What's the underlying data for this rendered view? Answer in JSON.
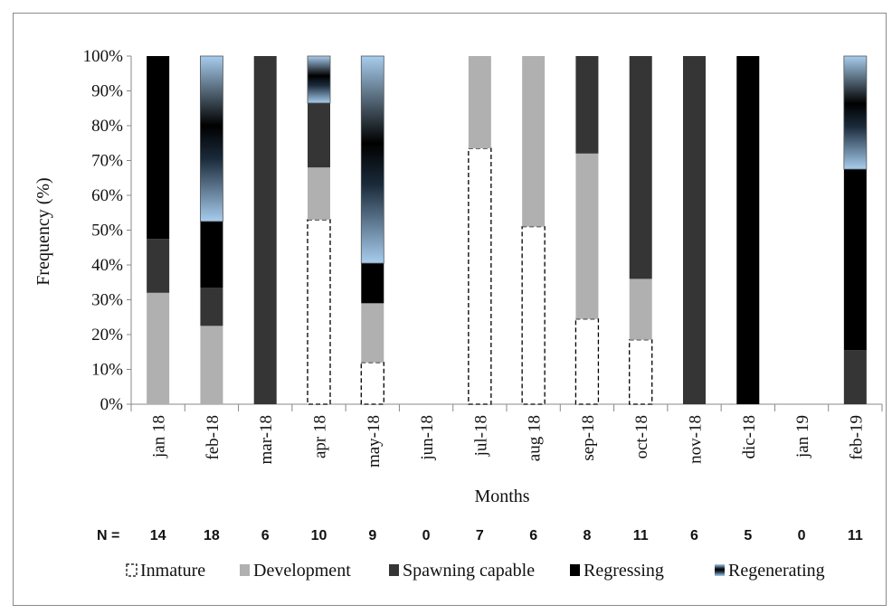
{
  "chart_data": {
    "type": "bar",
    "stacked": true,
    "percent": true,
    "xlabel": "Months",
    "ylabel": "Frequency  (%)",
    "ylim": [
      0,
      100
    ],
    "yticks": [
      "0%",
      "10%",
      "20%",
      "30%",
      "40%",
      "50%",
      "60%",
      "70%",
      "80%",
      "90%",
      "100%"
    ],
    "grid": false,
    "legend_position": "bottom",
    "categories": [
      "jan 18",
      "feb-18",
      "mar-18",
      "apr 18",
      "may-18",
      "jun-18",
      "jul-18",
      "aug 18",
      "sep-18",
      "oct-18",
      "nov-18",
      "dic-18",
      "jan 19",
      "feb-19"
    ],
    "n_prefix": "N =",
    "n_values": [
      "14",
      "18",
      "6",
      "10",
      "9",
      "0",
      "7",
      "6",
      "8",
      "11",
      "6",
      "5",
      "0",
      "11"
    ],
    "series": [
      {
        "name": "Inmature",
        "style": "dashed",
        "color": "#ffffff",
        "values": [
          0,
          0,
          0,
          53,
          12,
          0,
          73.5,
          51,
          24.5,
          18.5,
          0,
          0,
          0,
          0
        ]
      },
      {
        "name": "Development",
        "style": "solid",
        "color": "#b0b0b0",
        "values": [
          32,
          22.5,
          0,
          15,
          17,
          0,
          26.5,
          49,
          47.5,
          17.5,
          0,
          0,
          0,
          0
        ]
      },
      {
        "name": "Spawning capable",
        "style": "solid",
        "color": "#353535",
        "values": [
          15.5,
          11,
          100,
          18.5,
          0,
          0,
          0,
          0,
          28,
          64,
          100,
          0,
          0,
          15.5
        ]
      },
      {
        "name": "Regressing",
        "style": "solid",
        "color": "#000000",
        "values": [
          52.5,
          19,
          0,
          0,
          11.5,
          0,
          0,
          0,
          0,
          0,
          0,
          100,
          0,
          52
        ]
      },
      {
        "name": "Regenerating",
        "style": "gradient",
        "color": "#a8cdee",
        "values": [
          0,
          47.5,
          0,
          13.5,
          59.5,
          0,
          0,
          0,
          0,
          0,
          0,
          0,
          0,
          32.5
        ]
      }
    ]
  }
}
